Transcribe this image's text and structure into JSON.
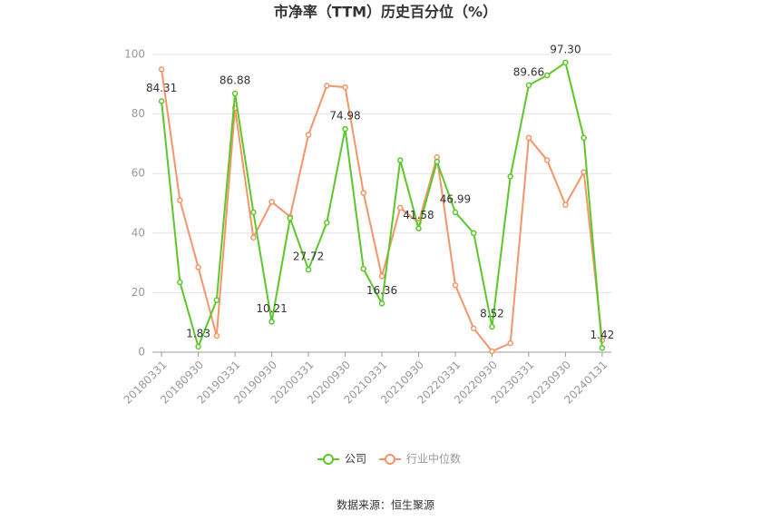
{
  "chart_data": {
    "type": "line",
    "title": "市净率（TTM）历史百分位（%）",
    "source": "数据来源：恒生聚源",
    "categories": [
      "20180331",
      null,
      "20180930",
      null,
      "20190331",
      null,
      "20190930",
      null,
      "20200331",
      null,
      "20200930",
      null,
      "20210331",
      null,
      "20210930",
      null,
      "20220331",
      null,
      "20220930",
      null,
      "20230331",
      null,
      "20230930",
      null,
      "20240131"
    ],
    "series": [
      {
        "name": "公司",
        "color": "#5cc72a",
        "values": [
          84.31,
          23.5,
          1.83,
          17.5,
          86.88,
          47,
          10.21,
          45,
          27.72,
          43.5,
          74.98,
          28,
          16.36,
          64.5,
          41.58,
          64,
          46.99,
          40,
          8.52,
          59,
          89.66,
          93,
          97.3,
          72,
          1.42
        ],
        "value_labels": [
          "84.31",
          null,
          "1.83",
          null,
          "86.88",
          null,
          "10.21",
          null,
          "27.72",
          null,
          "74.98",
          null,
          "16.36",
          null,
          "41.58",
          null,
          "46.99",
          null,
          "8.52",
          null,
          "89.66",
          null,
          "97.30",
          null,
          "1.42"
        ]
      },
      {
        "name": "行业中位数",
        "color": "#f4956a",
        "values": [
          95,
          51,
          28.5,
          5.5,
          82,
          38.5,
          50.5,
          45.5,
          73,
          89.5,
          89,
          53.5,
          25.5,
          48.5,
          43.5,
          65.5,
          22.5,
          8,
          0.3,
          3,
          72,
          64.5,
          49.5,
          60.5,
          4
        ]
      }
    ],
    "ylim": [
      0,
      100
    ],
    "yticks": [
      0,
      20,
      40,
      60,
      80,
      100
    ],
    "grid": true
  }
}
